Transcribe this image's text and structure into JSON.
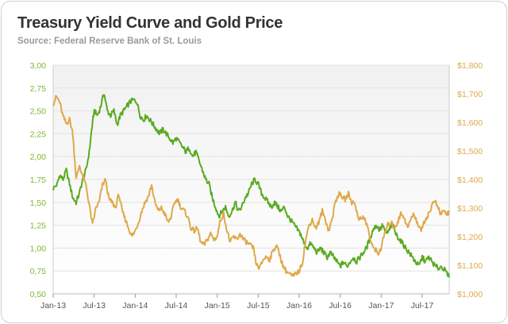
{
  "header": {
    "title": "Treasury Yield Curve and Gold Price",
    "subtitle": "Source: Federal Reserve Bank of St. Louis"
  },
  "colors": {
    "yield": "#5aaa23",
    "gold": "#e0a84a",
    "left_tick": "#7cb82f",
    "right_tick": "#e0a84a"
  },
  "chart_data": {
    "type": "line",
    "title": "Treasury Yield Curve and Gold Price",
    "subtitle": "Source: Federal Reserve Bank of St. Louis",
    "xlabel": "",
    "ylabel_left": "",
    "ylabel_right": "",
    "x_range": [
      2013.0,
      2017.83
    ],
    "ylim_left": [
      0.5,
      3.0
    ],
    "ylim_right": [
      1000,
      1800
    ],
    "grid": true,
    "left_ticks": [
      "0,50",
      "0,75",
      "1,00",
      "1,25",
      "1,50",
      "1,75",
      "2,00",
      "2,25",
      "2,50",
      "2,75",
      "3,00"
    ],
    "right_ticks": [
      "$1,000",
      "$1,100",
      "$1,200",
      "$1,300",
      "$1,400",
      "$1,500",
      "$1,600",
      "$1,700",
      "$1,800"
    ],
    "x_ticks": [
      {
        "label": "Jan-13",
        "x": 2013.0
      },
      {
        "label": "Jul-13",
        "x": 2013.5
      },
      {
        "label": "Jan-14",
        "x": 2014.0
      },
      {
        "label": "Jul-14",
        "x": 2014.5
      },
      {
        "label": "Jan-15",
        "x": 2015.0
      },
      {
        "label": "Jul-15",
        "x": 2015.5
      },
      {
        "label": "Jan-16",
        "x": 2016.0
      },
      {
        "label": "Jul-16",
        "x": 2016.5
      },
      {
        "label": "Jan-17",
        "x": 2017.0
      },
      {
        "label": "Jul-17",
        "x": 2017.5
      }
    ],
    "series": [
      {
        "name": "Treasury Yield Curve",
        "axis": "left",
        "points": [
          [
            2013.0,
            1.65
          ],
          [
            2013.05,
            1.7
          ],
          [
            2013.08,
            1.8
          ],
          [
            2013.12,
            1.75
          ],
          [
            2013.16,
            1.85
          ],
          [
            2013.2,
            1.7
          ],
          [
            2013.24,
            1.55
          ],
          [
            2013.28,
            1.5
          ],
          [
            2013.32,
            1.6
          ],
          [
            2013.36,
            1.75
          ],
          [
            2013.4,
            1.85
          ],
          [
            2013.44,
            2.05
          ],
          [
            2013.47,
            2.3
          ],
          [
            2013.5,
            2.5
          ],
          [
            2013.54,
            2.45
          ],
          [
            2013.58,
            2.55
          ],
          [
            2013.62,
            2.7
          ],
          [
            2013.66,
            2.5
          ],
          [
            2013.7,
            2.45
          ],
          [
            2013.74,
            2.5
          ],
          [
            2013.78,
            2.35
          ],
          [
            2013.82,
            2.45
          ],
          [
            2013.86,
            2.5
          ],
          [
            2013.9,
            2.55
          ],
          [
            2013.94,
            2.6
          ],
          [
            2013.98,
            2.62
          ],
          [
            2014.02,
            2.6
          ],
          [
            2014.06,
            2.45
          ],
          [
            2014.1,
            2.4
          ],
          [
            2014.14,
            2.45
          ],
          [
            2014.18,
            2.4
          ],
          [
            2014.22,
            2.35
          ],
          [
            2014.26,
            2.3
          ],
          [
            2014.3,
            2.25
          ],
          [
            2014.34,
            2.3
          ],
          [
            2014.38,
            2.25
          ],
          [
            2014.42,
            2.2
          ],
          [
            2014.46,
            2.15
          ],
          [
            2014.5,
            2.2
          ],
          [
            2014.54,
            2.15
          ],
          [
            2014.58,
            2.1
          ],
          [
            2014.62,
            2.05
          ],
          [
            2014.66,
            2.1
          ],
          [
            2014.7,
            2.0
          ],
          [
            2014.74,
            2.05
          ],
          [
            2014.78,
            1.95
          ],
          [
            2014.82,
            1.85
          ],
          [
            2014.86,
            1.75
          ],
          [
            2014.9,
            1.7
          ],
          [
            2014.94,
            1.55
          ],
          [
            2014.98,
            1.45
          ],
          [
            2015.02,
            1.35
          ],
          [
            2015.06,
            1.4
          ],
          [
            2015.1,
            1.45
          ],
          [
            2015.14,
            1.35
          ],
          [
            2015.18,
            1.4
          ],
          [
            2015.22,
            1.5
          ],
          [
            2015.26,
            1.4
          ],
          [
            2015.3,
            1.45
          ],
          [
            2015.34,
            1.55
          ],
          [
            2015.38,
            1.6
          ],
          [
            2015.42,
            1.7
          ],
          [
            2015.46,
            1.75
          ],
          [
            2015.5,
            1.7
          ],
          [
            2015.54,
            1.6
          ],
          [
            2015.58,
            1.55
          ],
          [
            2015.62,
            1.5
          ],
          [
            2015.66,
            1.45
          ],
          [
            2015.7,
            1.5
          ],
          [
            2015.74,
            1.45
          ],
          [
            2015.78,
            1.4
          ],
          [
            2015.82,
            1.45
          ],
          [
            2015.86,
            1.35
          ],
          [
            2015.9,
            1.3
          ],
          [
            2015.94,
            1.25
          ],
          [
            2015.98,
            1.2
          ],
          [
            2016.02,
            1.15
          ],
          [
            2016.06,
            1.05
          ],
          [
            2016.1,
            1.0
          ],
          [
            2016.14,
            1.05
          ],
          [
            2016.18,
            1.0
          ],
          [
            2016.22,
            0.95
          ],
          [
            2016.26,
            1.0
          ],
          [
            2016.3,
            0.95
          ],
          [
            2016.34,
            0.9
          ],
          [
            2016.38,
            0.95
          ],
          [
            2016.42,
            0.9
          ],
          [
            2016.46,
            0.85
          ],
          [
            2016.5,
            0.8
          ],
          [
            2016.54,
            0.85
          ],
          [
            2016.58,
            0.8
          ],
          [
            2016.62,
            0.85
          ],
          [
            2016.66,
            0.9
          ],
          [
            2016.7,
            0.85
          ],
          [
            2016.74,
            0.9
          ],
          [
            2016.78,
            0.95
          ],
          [
            2016.82,
            1.0
          ],
          [
            2016.86,
            1.1
          ],
          [
            2016.9,
            1.2
          ],
          [
            2016.94,
            1.25
          ],
          [
            2016.98,
            1.2
          ],
          [
            2017.02,
            1.25
          ],
          [
            2017.06,
            1.15
          ],
          [
            2017.1,
            1.2
          ],
          [
            2017.14,
            1.25
          ],
          [
            2017.18,
            1.15
          ],
          [
            2017.22,
            1.1
          ],
          [
            2017.26,
            1.05
          ],
          [
            2017.3,
            1.0
          ],
          [
            2017.34,
            0.95
          ],
          [
            2017.38,
            0.9
          ],
          [
            2017.42,
            0.85
          ],
          [
            2017.46,
            0.8
          ],
          [
            2017.5,
            0.9
          ],
          [
            2017.54,
            0.85
          ],
          [
            2017.58,
            0.9
          ],
          [
            2017.62,
            0.85
          ],
          [
            2017.66,
            0.8
          ],
          [
            2017.7,
            0.78
          ],
          [
            2017.74,
            0.8
          ],
          [
            2017.78,
            0.75
          ],
          [
            2017.83,
            0.68
          ]
        ]
      },
      {
        "name": "Gold Price",
        "axis": "right",
        "points": [
          [
            2013.0,
            1665
          ],
          [
            2013.04,
            1690
          ],
          [
            2013.08,
            1670
          ],
          [
            2013.12,
            1620
          ],
          [
            2013.16,
            1595
          ],
          [
            2013.2,
            1610
          ],
          [
            2013.24,
            1560
          ],
          [
            2013.28,
            1400
          ],
          [
            2013.32,
            1450
          ],
          [
            2013.36,
            1410
          ],
          [
            2013.4,
            1380
          ],
          [
            2013.44,
            1310
          ],
          [
            2013.48,
            1240
          ],
          [
            2013.52,
            1300
          ],
          [
            2013.56,
            1320
          ],
          [
            2013.6,
            1380
          ],
          [
            2013.64,
            1400
          ],
          [
            2013.68,
            1330
          ],
          [
            2013.72,
            1320
          ],
          [
            2013.76,
            1300
          ],
          [
            2013.8,
            1350
          ],
          [
            2013.84,
            1290
          ],
          [
            2013.88,
            1260
          ],
          [
            2013.92,
            1230
          ],
          [
            2013.96,
            1200
          ],
          [
            2014.0,
            1220
          ],
          [
            2014.04,
            1250
          ],
          [
            2014.08,
            1290
          ],
          [
            2014.12,
            1320
          ],
          [
            2014.16,
            1340
          ],
          [
            2014.2,
            1380
          ],
          [
            2014.24,
            1320
          ],
          [
            2014.28,
            1290
          ],
          [
            2014.32,
            1300
          ],
          [
            2014.36,
            1280
          ],
          [
            2014.4,
            1250
          ],
          [
            2014.44,
            1270
          ],
          [
            2014.48,
            1320
          ],
          [
            2014.52,
            1330
          ],
          [
            2014.56,
            1300
          ],
          [
            2014.6,
            1290
          ],
          [
            2014.64,
            1270
          ],
          [
            2014.68,
            1230
          ],
          [
            2014.72,
            1220
          ],
          [
            2014.76,
            1230
          ],
          [
            2014.8,
            1180
          ],
          [
            2014.84,
            1170
          ],
          [
            2014.88,
            1190
          ],
          [
            2014.92,
            1210
          ],
          [
            2014.96,
            1190
          ],
          [
            2015.0,
            1200
          ],
          [
            2015.04,
            1260
          ],
          [
            2015.08,
            1280
          ],
          [
            2015.12,
            1220
          ],
          [
            2015.16,
            1180
          ],
          [
            2015.2,
            1200
          ],
          [
            2015.24,
            1190
          ],
          [
            2015.28,
            1210
          ],
          [
            2015.32,
            1190
          ],
          [
            2015.36,
            1180
          ],
          [
            2015.4,
            1170
          ],
          [
            2015.44,
            1160
          ],
          [
            2015.48,
            1100
          ],
          [
            2015.52,
            1090
          ],
          [
            2015.56,
            1120
          ],
          [
            2015.6,
            1130
          ],
          [
            2015.64,
            1120
          ],
          [
            2015.68,
            1150
          ],
          [
            2015.72,
            1170
          ],
          [
            2015.76,
            1140
          ],
          [
            2015.8,
            1100
          ],
          [
            2015.84,
            1080
          ],
          [
            2015.88,
            1070
          ],
          [
            2015.92,
            1060
          ],
          [
            2015.96,
            1070
          ],
          [
            2016.0,
            1080
          ],
          [
            2016.04,
            1110
          ],
          [
            2016.08,
            1190
          ],
          [
            2016.12,
            1240
          ],
          [
            2016.16,
            1260
          ],
          [
            2016.2,
            1230
          ],
          [
            2016.24,
            1250
          ],
          [
            2016.28,
            1290
          ],
          [
            2016.32,
            1260
          ],
          [
            2016.36,
            1220
          ],
          [
            2016.4,
            1260
          ],
          [
            2016.44,
            1320
          ],
          [
            2016.48,
            1350
          ],
          [
            2016.52,
            1340
          ],
          [
            2016.56,
            1330
          ],
          [
            2016.6,
            1350
          ],
          [
            2016.64,
            1320
          ],
          [
            2016.68,
            1320
          ],
          [
            2016.72,
            1260
          ],
          [
            2016.76,
            1270
          ],
          [
            2016.8,
            1260
          ],
          [
            2016.84,
            1230
          ],
          [
            2016.88,
            1170
          ],
          [
            2016.92,
            1160
          ],
          [
            2016.96,
            1140
          ],
          [
            2017.0,
            1160
          ],
          [
            2017.04,
            1210
          ],
          [
            2017.08,
            1240
          ],
          [
            2017.12,
            1250
          ],
          [
            2017.16,
            1230
          ],
          [
            2017.2,
            1250
          ],
          [
            2017.24,
            1280
          ],
          [
            2017.28,
            1270
          ],
          [
            2017.32,
            1230
          ],
          [
            2017.36,
            1260
          ],
          [
            2017.4,
            1280
          ],
          [
            2017.44,
            1250
          ],
          [
            2017.48,
            1220
          ],
          [
            2017.52,
            1250
          ],
          [
            2017.56,
            1270
          ],
          [
            2017.6,
            1290
          ],
          [
            2017.64,
            1330
          ],
          [
            2017.68,
            1310
          ],
          [
            2017.72,
            1280
          ],
          [
            2017.76,
            1290
          ],
          [
            2017.8,
            1280
          ],
          [
            2017.83,
            1285
          ]
        ]
      }
    ]
  }
}
